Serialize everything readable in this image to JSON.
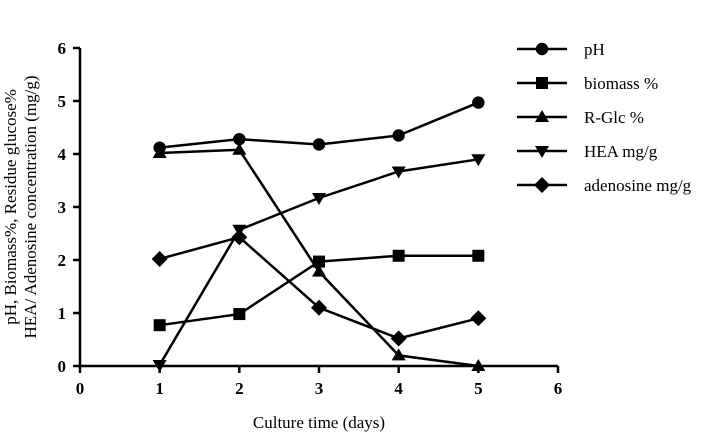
{
  "chart_data": {
    "type": "line",
    "xlabel": "Culture time (days)",
    "ylabel_lines": [
      "pH, Biomass%, Residue glucose%",
      "HEA/ Adenosine concentration (mg/g)"
    ],
    "xlim": [
      0,
      6
    ],
    "ylim": [
      0,
      6
    ],
    "xticks": [
      "0",
      "1",
      "2",
      "3",
      "4",
      "5",
      "6"
    ],
    "yticks": [
      "0",
      "1",
      "2",
      "3",
      "4",
      "5",
      "6"
    ],
    "grid": false,
    "legend_position": "right",
    "x": [
      1,
      2,
      3,
      4,
      5
    ],
    "series": [
      {
        "name": "pH",
        "marker": "circle",
        "values": [
          4.12,
          4.28,
          4.18,
          4.35,
          4.97
        ]
      },
      {
        "name": "biomass %",
        "marker": "square",
        "values": [
          0.77,
          0.98,
          1.97,
          2.08,
          2.08
        ]
      },
      {
        "name": "R-Glc %",
        "marker": "triangle-up",
        "values": [
          4.02,
          4.08,
          1.78,
          0.2,
          0.0
        ]
      },
      {
        "name": "HEA mg/g",
        "marker": "triangle-down",
        "values": [
          0.02,
          2.57,
          3.17,
          3.67,
          3.9
        ]
      },
      {
        "name": "adenosine mg/g",
        "marker": "diamond",
        "values": [
          2.02,
          2.43,
          1.1,
          0.52,
          0.9
        ]
      }
    ]
  }
}
